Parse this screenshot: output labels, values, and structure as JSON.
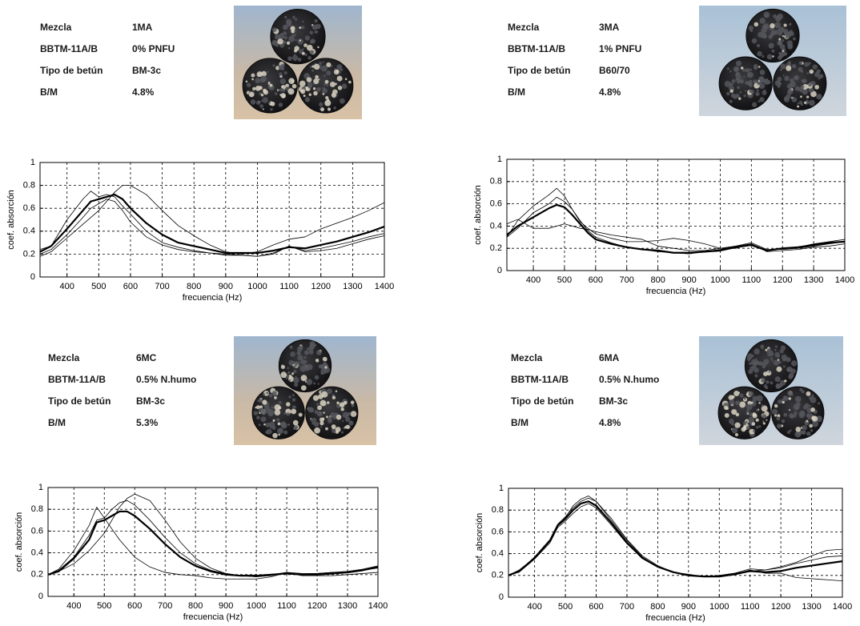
{
  "chart_data": [
    {
      "type": "line",
      "info": [
        {
          "label": "Mezcla",
          "value": "1MA"
        },
        {
          "label": "BBTM-11A/B",
          "value": "0% PNFU"
        },
        {
          "label": "Tipo de betún",
          "value": "BM-3c"
        },
        {
          "label": "B/M",
          "value": "4.8%"
        }
      ],
      "xlabel": "frecuencia (Hz)",
      "ylabel": "coef. absorción",
      "xlim": [
        315,
        1400
      ],
      "ylim": [
        0,
        1
      ],
      "xticks": [
        400,
        500,
        600,
        700,
        800,
        900,
        1000,
        1100,
        1200,
        1300,
        1400
      ],
      "yticks": [
        0,
        0.2,
        0.4,
        0.6,
        0.8,
        1
      ],
      "grid": true,
      "x": [
        315,
        350,
        400,
        450,
        475,
        500,
        525,
        550,
        575,
        600,
        650,
        700,
        750,
        800,
        850,
        900,
        950,
        1000,
        1050,
        1100,
        1150,
        1200,
        1250,
        1300,
        1350,
        1400
      ],
      "series": [
        {
          "color": "#000000",
          "width": 0.8,
          "values": [
            0.24,
            0.27,
            0.5,
            0.68,
            0.75,
            0.7,
            0.72,
            0.7,
            0.62,
            0.55,
            0.4,
            0.3,
            0.26,
            0.23,
            0.21,
            0.19,
            0.19,
            0.18,
            0.2,
            0.27,
            0.22,
            0.23,
            0.25,
            0.29,
            0.33,
            0.36
          ]
        },
        {
          "color": "#000000",
          "width": 0.8,
          "values": [
            0.18,
            0.22,
            0.34,
            0.46,
            0.52,
            0.58,
            0.66,
            0.74,
            0.8,
            0.8,
            0.72,
            0.58,
            0.45,
            0.36,
            0.28,
            0.22,
            0.2,
            0.22,
            0.28,
            0.33,
            0.35,
            0.42,
            0.47,
            0.52,
            0.58,
            0.65
          ]
        },
        {
          "color": "#000000",
          "width": 0.8,
          "values": [
            0.2,
            0.24,
            0.37,
            0.52,
            0.6,
            0.64,
            0.68,
            0.66,
            0.58,
            0.48,
            0.35,
            0.28,
            0.24,
            0.22,
            0.21,
            0.2,
            0.19,
            0.18,
            0.21,
            0.27,
            0.23,
            0.25,
            0.28,
            0.31,
            0.35,
            0.38
          ]
        },
        {
          "color": "#000000",
          "width": 2.2,
          "values": [
            0.22,
            0.27,
            0.42,
            0.58,
            0.66,
            0.68,
            0.7,
            0.72,
            0.68,
            0.6,
            0.47,
            0.37,
            0.3,
            0.27,
            0.24,
            0.21,
            0.21,
            0.21,
            0.23,
            0.26,
            0.25,
            0.28,
            0.31,
            0.35,
            0.39,
            0.44
          ]
        }
      ]
    },
    {
      "type": "line",
      "info": [
        {
          "label": "Mezcla",
          "value": "3MA"
        },
        {
          "label": "BBTM-11A/B",
          "value": "1% PNFU"
        },
        {
          "label": "Tipo de betún",
          "value": "B60/70"
        },
        {
          "label": "B/M",
          "value": "4.8%"
        }
      ],
      "xlabel": "frecuencia (Hz)",
      "ylabel": "coef. absorción",
      "xlim": [
        315,
        1400
      ],
      "ylim": [
        0,
        1
      ],
      "xticks": [
        400,
        500,
        600,
        700,
        800,
        900,
        1000,
        1100,
        1200,
        1300,
        1400
      ],
      "yticks": [
        0,
        0.2,
        0.4,
        0.6,
        0.8,
        1
      ],
      "grid": true,
      "x": [
        315,
        350,
        400,
        450,
        475,
        500,
        525,
        550,
        575,
        600,
        650,
        700,
        750,
        800,
        850,
        900,
        950,
        1000,
        1050,
        1100,
        1150,
        1200,
        1250,
        1300,
        1350,
        1400
      ],
      "series": [
        {
          "color": "#000000",
          "width": 0.8,
          "values": [
            0.3,
            0.45,
            0.58,
            0.68,
            0.74,
            0.67,
            0.55,
            0.45,
            0.36,
            0.3,
            0.25,
            0.21,
            0.19,
            0.17,
            0.16,
            0.15,
            0.17,
            0.19,
            0.22,
            0.24,
            0.18,
            0.2,
            0.21,
            0.24,
            0.26,
            0.28
          ]
        },
        {
          "color": "#000000",
          "width": 0.8,
          "values": [
            0.42,
            0.46,
            0.38,
            0.38,
            0.4,
            0.42,
            0.4,
            0.38,
            0.37,
            0.35,
            0.32,
            0.3,
            0.28,
            0.22,
            0.2,
            0.18,
            0.18,
            0.2,
            0.22,
            0.25,
            0.19,
            0.19,
            0.2,
            0.22,
            0.24,
            0.26
          ]
        },
        {
          "color": "#000000",
          "width": 0.8,
          "values": [
            0.3,
            0.38,
            0.52,
            0.6,
            0.66,
            0.62,
            0.55,
            0.44,
            0.38,
            0.33,
            0.29,
            0.26,
            0.26,
            0.27,
            0.29,
            0.27,
            0.24,
            0.2,
            0.2,
            0.24,
            0.17,
            0.18,
            0.19,
            0.21,
            0.22,
            0.24
          ]
        },
        {
          "color": "#000000",
          "width": 2.2,
          "values": [
            0.32,
            0.4,
            0.48,
            0.56,
            0.59,
            0.57,
            0.5,
            0.42,
            0.34,
            0.28,
            0.24,
            0.21,
            0.19,
            0.18,
            0.16,
            0.16,
            0.17,
            0.18,
            0.21,
            0.23,
            0.18,
            0.2,
            0.21,
            0.23,
            0.25,
            0.26
          ]
        }
      ]
    },
    {
      "type": "line",
      "info": [
        {
          "label": "Mezcla",
          "value": "6MC"
        },
        {
          "label": "BBTM-11A/B",
          "value": "0.5% N.humo"
        },
        {
          "label": "Tipo de betún",
          "value": "BM-3c"
        },
        {
          "label": "B/M",
          "value": "5.3%"
        }
      ],
      "xlabel": "frecuencia (Hz)",
      "ylabel": "coef. absorción",
      "xlim": [
        315,
        1400
      ],
      "ylim": [
        0,
        1
      ],
      "xticks": [
        400,
        500,
        600,
        700,
        800,
        900,
        1000,
        1100,
        1200,
        1300,
        1400
      ],
      "yticks": [
        0,
        0.2,
        0.4,
        0.6,
        0.8,
        1
      ],
      "grid": true,
      "x": [
        315,
        350,
        400,
        450,
        475,
        500,
        525,
        550,
        575,
        600,
        650,
        700,
        750,
        800,
        850,
        900,
        950,
        1000,
        1050,
        1100,
        1150,
        1200,
        1250,
        1300,
        1350,
        1400
      ],
      "series": [
        {
          "color": "#000000",
          "width": 0.8,
          "values": [
            0.2,
            0.25,
            0.42,
            0.65,
            0.82,
            0.72,
            0.62,
            0.52,
            0.44,
            0.36,
            0.27,
            0.22,
            0.2,
            0.19,
            0.17,
            0.16,
            0.16,
            0.16,
            0.18,
            0.22,
            0.19,
            0.19,
            0.19,
            0.2,
            0.21,
            0.22
          ]
        },
        {
          "color": "#000000",
          "width": 0.8,
          "values": [
            0.2,
            0.23,
            0.3,
            0.42,
            0.5,
            0.58,
            0.7,
            0.82,
            0.9,
            0.94,
            0.88,
            0.7,
            0.5,
            0.35,
            0.26,
            0.21,
            0.19,
            0.18,
            0.19,
            0.22,
            0.2,
            0.21,
            0.22,
            0.23,
            0.25,
            0.28
          ]
        },
        {
          "color": "#000000",
          "width": 0.8,
          "values": [
            0.2,
            0.24,
            0.36,
            0.56,
            0.7,
            0.72,
            0.8,
            0.86,
            0.88,
            0.84,
            0.7,
            0.54,
            0.4,
            0.3,
            0.24,
            0.21,
            0.19,
            0.18,
            0.2,
            0.22,
            0.21,
            0.21,
            0.22,
            0.22,
            0.24,
            0.26
          ]
        },
        {
          "color": "#000000",
          "width": 2.2,
          "values": [
            0.2,
            0.23,
            0.35,
            0.52,
            0.68,
            0.7,
            0.74,
            0.78,
            0.78,
            0.74,
            0.62,
            0.48,
            0.36,
            0.28,
            0.23,
            0.2,
            0.19,
            0.19,
            0.2,
            0.21,
            0.2,
            0.2,
            0.21,
            0.22,
            0.24,
            0.27
          ]
        }
      ]
    },
    {
      "type": "line",
      "info": [
        {
          "label": "Mezcla",
          "value": "6MA"
        },
        {
          "label": "BBTM-11A/B",
          "value": "0.5% N.humo"
        },
        {
          "label": "Tipo de betún",
          "value": "BM-3c"
        },
        {
          "label": "B/M",
          "value": "4.8%"
        }
      ],
      "xlabel": "frecuencia (Hz)",
      "ylabel": "coef. absorción",
      "xlim": [
        315,
        1400
      ],
      "ylim": [
        0,
        1
      ],
      "xticks": [
        400,
        500,
        600,
        700,
        800,
        900,
        1000,
        1100,
        1200,
        1300,
        1400
      ],
      "yticks": [
        0,
        0.2,
        0.4,
        0.6,
        0.8,
        1
      ],
      "grid": true,
      "x": [
        315,
        350,
        400,
        450,
        475,
        500,
        525,
        550,
        575,
        600,
        650,
        700,
        750,
        800,
        850,
        900,
        950,
        1000,
        1050,
        1100,
        1150,
        1200,
        1250,
        1300,
        1350,
        1400
      ],
      "series": [
        {
          "color": "#000000",
          "width": 0.8,
          "values": [
            0.2,
            0.24,
            0.37,
            0.53,
            0.67,
            0.74,
            0.82,
            0.88,
            0.91,
            0.88,
            0.7,
            0.52,
            0.37,
            0.28,
            0.23,
            0.2,
            0.19,
            0.19,
            0.21,
            0.25,
            0.22,
            0.22,
            0.18,
            0.17,
            0.16,
            0.15
          ]
        },
        {
          "color": "#000000",
          "width": 0.8,
          "values": [
            0.2,
            0.25,
            0.36,
            0.52,
            0.66,
            0.73,
            0.84,
            0.9,
            0.93,
            0.88,
            0.72,
            0.53,
            0.38,
            0.29,
            0.23,
            0.21,
            0.19,
            0.2,
            0.22,
            0.26,
            0.25,
            0.28,
            0.32,
            0.38,
            0.43,
            0.44
          ]
        },
        {
          "color": "#000000",
          "width": 0.8,
          "values": [
            0.2,
            0.23,
            0.35,
            0.5,
            0.64,
            0.7,
            0.77,
            0.83,
            0.86,
            0.82,
            0.66,
            0.49,
            0.36,
            0.28,
            0.23,
            0.2,
            0.19,
            0.19,
            0.22,
            0.24,
            0.25,
            0.27,
            0.31,
            0.34,
            0.37,
            0.38
          ]
        },
        {
          "color": "#000000",
          "width": 2.2,
          "values": [
            0.2,
            0.24,
            0.36,
            0.52,
            0.66,
            0.72,
            0.8,
            0.86,
            0.88,
            0.84,
            0.68,
            0.5,
            0.36,
            0.28,
            0.23,
            0.2,
            0.19,
            0.19,
            0.21,
            0.24,
            0.23,
            0.24,
            0.27,
            0.29,
            0.31,
            0.33
          ]
        }
      ]
    }
  ]
}
